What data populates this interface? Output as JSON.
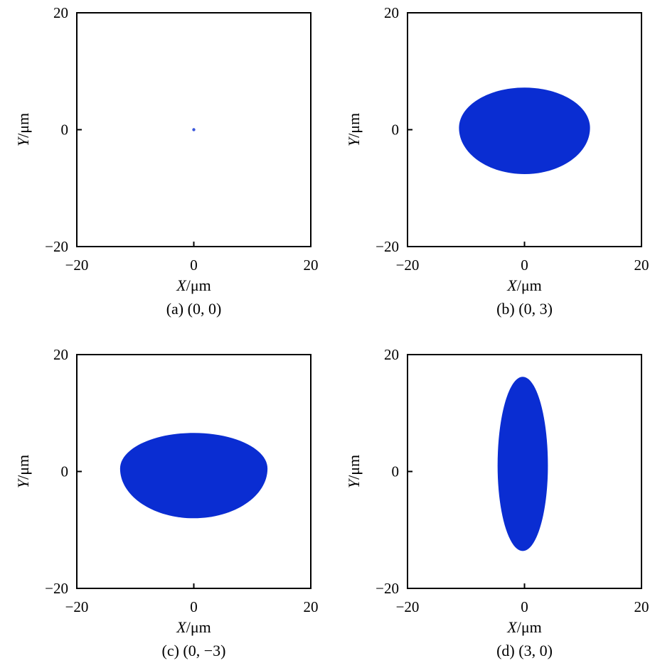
{
  "colors": {
    "spot": "#0a2dd2",
    "axis": "#000000",
    "background": "#ffffff"
  },
  "chart_data": [
    {
      "type": "scatter",
      "caption": "(a) (0, 0)",
      "xlabel_var": "X",
      "xlabel_unit": "/μm",
      "ylabel_var": "Y",
      "ylabel_unit": "/μm",
      "xlim": [
        -20,
        20
      ],
      "ylim": [
        -20,
        20
      ],
      "xticks": [
        -20,
        0,
        20
      ],
      "yticks": [
        -20,
        0,
        20
      ],
      "xtick_labels": [
        "−20",
        "0",
        "20"
      ],
      "ytick_labels": [
        "−20",
        "0",
        "20"
      ],
      "grid": false,
      "spot": {
        "shape": "point",
        "center": [
          0,
          0
        ],
        "x_extent": [
          -0.3,
          0.3
        ],
        "y_top": 0.3,
        "y_bottom": -0.3,
        "widest_y": 0
      }
    },
    {
      "type": "scatter",
      "caption": "(b) (0, 3)",
      "xlabel_var": "X",
      "xlabel_unit": "/μm",
      "ylabel_var": "Y",
      "ylabel_unit": "/μm",
      "xlim": [
        -20,
        20
      ],
      "ylim": [
        -20,
        20
      ],
      "xticks": [
        -20,
        0,
        20
      ],
      "yticks": [
        -20,
        0,
        20
      ],
      "xtick_labels": [
        "−20",
        "0",
        "20"
      ],
      "ytick_labels": [
        "−20",
        "0",
        "20"
      ],
      "grid": false,
      "spot": {
        "shape": "egg",
        "x_extent": [
          -11.2,
          11.2
        ],
        "y_top": 7.2,
        "y_bottom": -7.6,
        "widest_y": 0.3
      }
    },
    {
      "type": "scatter",
      "caption": "(c) (0, −3)",
      "xlabel_var": "X",
      "xlabel_unit": "/μm",
      "ylabel_var": "Y",
      "ylabel_unit": "/μm",
      "xlim": [
        -20,
        20
      ],
      "ylim": [
        -20,
        20
      ],
      "xticks": [
        -20,
        0,
        20
      ],
      "yticks": [
        -20,
        0,
        20
      ],
      "xtick_labels": [
        "−20",
        "0",
        "20"
      ],
      "ytick_labels": [
        "−20",
        "0",
        "20"
      ],
      "grid": false,
      "spot": {
        "shape": "egg",
        "x_extent": [
          -12.6,
          12.6
        ],
        "y_top": 6.6,
        "y_bottom": -8.0,
        "widest_y": 0.5
      }
    },
    {
      "type": "scatter",
      "caption": "(d) (3, 0)",
      "xlabel_var": "X",
      "xlabel_unit": "/μm",
      "ylabel_var": "Y",
      "ylabel_unit": "/μm",
      "xlim": [
        -20,
        20
      ],
      "ylim": [
        -20,
        20
      ],
      "xticks": [
        -20,
        0,
        20
      ],
      "yticks": [
        -20,
        0,
        20
      ],
      "xtick_labels": [
        "−20",
        "0",
        "20"
      ],
      "ytick_labels": [
        "−20",
        "0",
        "20"
      ],
      "grid": false,
      "spot": {
        "shape": "egg",
        "x_extent": [
          -4.6,
          4.0
        ],
        "y_top": 16.2,
        "y_bottom": -13.6,
        "widest_y": 1.0
      }
    }
  ]
}
